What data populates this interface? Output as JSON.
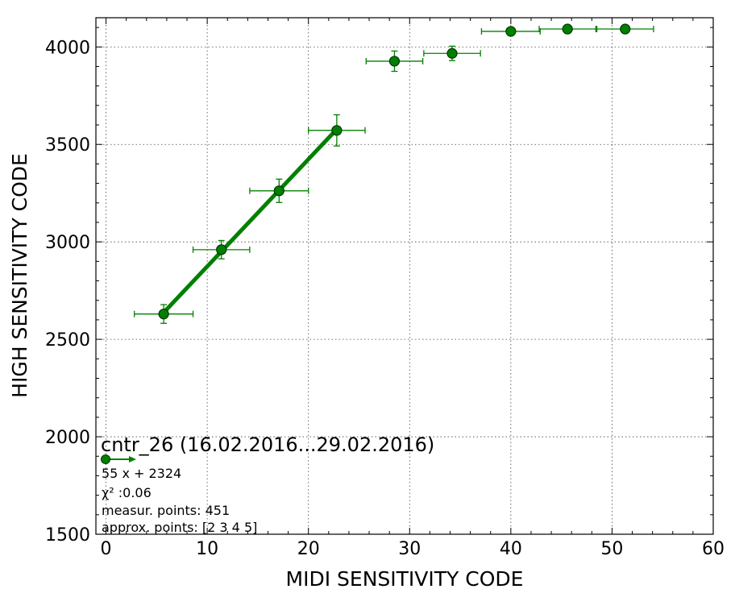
{
  "colors": {
    "series": "#008000",
    "marker_edge": "#003300",
    "grid": "#444444"
  },
  "chart_data": {
    "type": "scatter",
    "xlabel": "MIDI SENSITIVITY CODE",
    "ylabel": "HIGH SENSITIVITY CODE",
    "xlim": [
      -1,
      60
    ],
    "ylim": [
      1500,
      4150
    ],
    "x_ticks": [
      0,
      10,
      20,
      30,
      40,
      50,
      60
    ],
    "y_ticks": [
      1500,
      2000,
      2500,
      3000,
      3500,
      4000
    ],
    "grid": true,
    "series": [
      {
        "points": [
          {
            "x": 5.7,
            "y": 2630,
            "xerr": 2.9,
            "yerr": 48
          },
          {
            "x": 11.4,
            "y": 2960,
            "xerr": 2.8,
            "yerr": 47
          },
          {
            "x": 17.1,
            "y": 3262,
            "xerr": 2.9,
            "yerr": 60
          },
          {
            "x": 22.8,
            "y": 3572,
            "xerr": 2.8,
            "yerr": 80
          },
          {
            "x": 28.5,
            "y": 3927,
            "xerr": 2.8,
            "yerr": 52
          },
          {
            "x": 34.2,
            "y": 3967,
            "xerr": 2.8,
            "yerr": 37
          },
          {
            "x": 40.0,
            "y": 4080,
            "xerr": 2.9,
            "yerr": 0
          },
          {
            "x": 45.6,
            "y": 4092,
            "xerr": 2.8,
            "yerr": 0
          },
          {
            "x": 51.3,
            "y": 4092,
            "xerr": 2.8,
            "yerr": 0
          }
        ]
      }
    ],
    "fit": {
      "slope": 55,
      "intercept": 2324,
      "x_range": [
        5.7,
        22.8
      ]
    },
    "annotation": {
      "title": "cntr_26 (16.02.2016...29.02.2016)",
      "equation": "55 x + 2324",
      "chi2": "χ² :0.06",
      "measur_points": "measur. points: 451",
      "approx_points": "approx. points: [2 3 4 5]"
    }
  }
}
